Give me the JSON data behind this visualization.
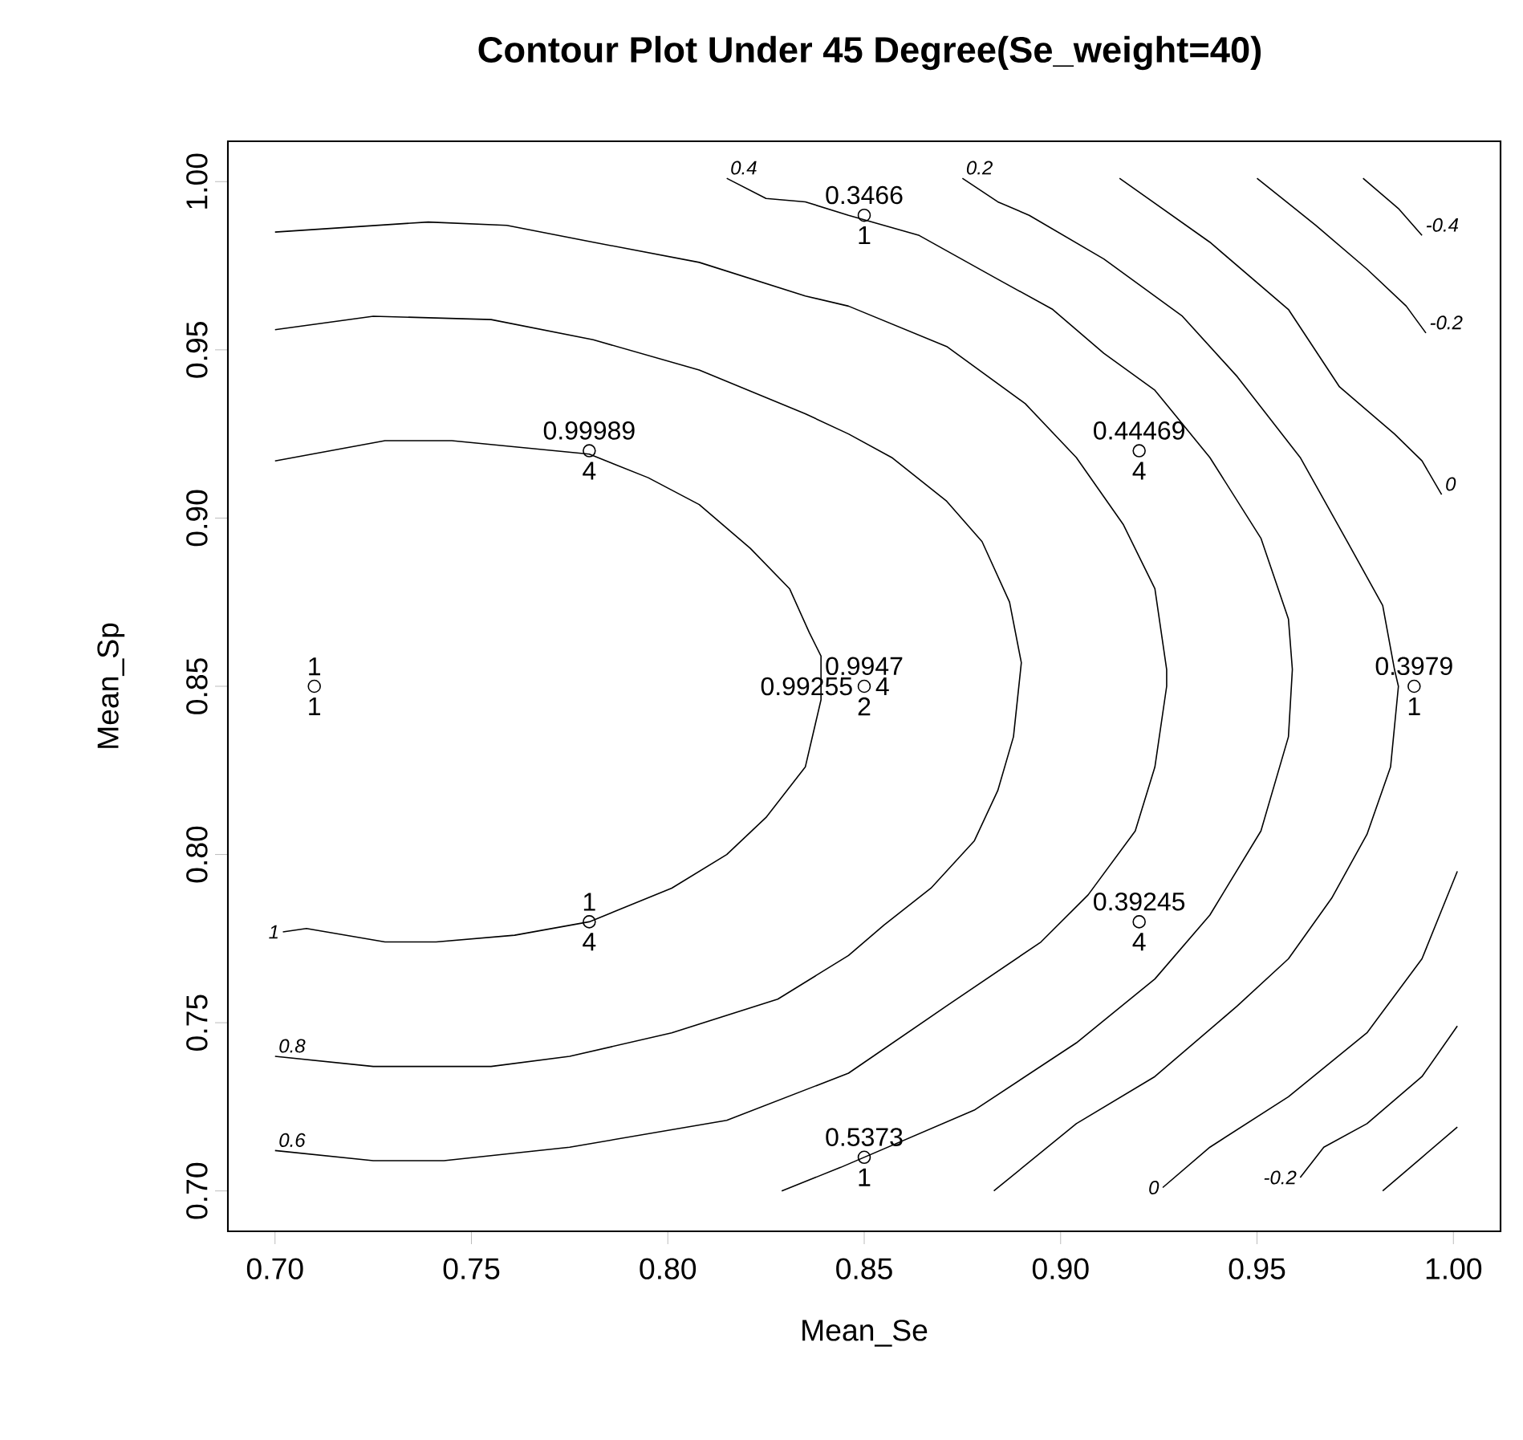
{
  "chart_data": {
    "type": "scatter",
    "title": "Contour Plot Under 45 Degree(Se_weight=40)",
    "xlabel": "Mean_Se",
    "ylabel": "Mean_Sp",
    "xlim": [
      0.688,
      1.012
    ],
    "ylim": [
      0.688,
      1.012
    ],
    "xticks": [
      {
        "value": 0.7,
        "label": "0.70"
      },
      {
        "value": 0.75,
        "label": "0.75"
      },
      {
        "value": 0.8,
        "label": "0.80"
      },
      {
        "value": 0.85,
        "label": "0.85"
      },
      {
        "value": 0.9,
        "label": "0.90"
      },
      {
        "value": 0.95,
        "label": "0.95"
      },
      {
        "value": 1.0,
        "label": "1.00"
      }
    ],
    "yticks": [
      {
        "value": 0.7,
        "label": "0.70"
      },
      {
        "value": 0.75,
        "label": "0.75"
      },
      {
        "value": 0.8,
        "label": "0.80"
      },
      {
        "value": 0.85,
        "label": "0.85"
      },
      {
        "value": 0.9,
        "label": "0.90"
      },
      {
        "value": 0.95,
        "label": "0.95"
      },
      {
        "value": 1.0,
        "label": "1.00"
      }
    ],
    "series": [
      {
        "marker": "circle",
        "color": "#000000",
        "x": [
          0.71,
          0.78,
          0.78,
          0.85,
          0.85,
          0.85,
          0.92,
          0.92,
          0.99
        ],
        "values": [
          0.85,
          0.92,
          0.78,
          0.99,
          0.85,
          0.71,
          0.92,
          0.78,
          0.85
        ]
      },
      {
        "type": "line",
        "marker": "none",
        "name": "1",
        "color": "#000000",
        "x": [
          0.702,
          0.708,
          0.728,
          0.741,
          0.761,
          0.78,
          0.801,
          0.815,
          0.825,
          0.835,
          0.839,
          0.839,
          0.836,
          0.831,
          0.821,
          0.808,
          0.795,
          0.78,
          0.745,
          0.728,
          0.7
        ],
        "values": [
          0.777,
          0.778,
          0.774,
          0.774,
          0.776,
          0.78,
          0.79,
          0.8,
          0.811,
          0.826,
          0.846,
          0.859,
          0.866,
          0.879,
          0.891,
          0.904,
          0.912,
          0.919,
          0.923,
          0.923,
          0.917
        ]
      },
      {
        "type": "line",
        "marker": "none",
        "name": "0.8",
        "color": "#000000",
        "x": [
          0.7,
          0.725,
          0.743,
          0.755,
          0.775,
          0.801,
          0.828,
          0.846,
          0.855,
          0.867,
          0.878,
          0.884,
          0.888,
          0.89,
          0.89,
          0.887,
          0.88,
          0.871,
          0.857,
          0.846,
          0.835,
          0.808,
          0.781,
          0.755,
          0.725,
          0.7
        ],
        "values": [
          0.74,
          0.737,
          0.737,
          0.737,
          0.74,
          0.747,
          0.757,
          0.77,
          0.779,
          0.79,
          0.804,
          0.819,
          0.835,
          0.857,
          0.857,
          0.875,
          0.893,
          0.905,
          0.918,
          0.925,
          0.931,
          0.944,
          0.953,
          0.959,
          0.96,
          0.956
        ]
      },
      {
        "type": "line",
        "marker": "none",
        "name": "0.6",
        "color": "#000000",
        "x": [
          0.7,
          0.725,
          0.743,
          0.775,
          0.815,
          0.846,
          0.871,
          0.895,
          0.907,
          0.919,
          0.924,
          0.927,
          0.927,
          0.924,
          0.916,
          0.904,
          0.891,
          0.871,
          0.846,
          0.835,
          0.808,
          0.781,
          0.759,
          0.739,
          0.7
        ],
        "values": [
          0.712,
          0.709,
          0.709,
          0.713,
          0.721,
          0.735,
          0.755,
          0.774,
          0.788,
          0.807,
          0.826,
          0.85,
          0.855,
          0.879,
          0.898,
          0.918,
          0.934,
          0.951,
          0.963,
          0.966,
          0.976,
          0.982,
          0.987,
          0.988,
          0.985
        ]
      },
      {
        "type": "line",
        "marker": "none",
        "name": "0.4",
        "color": "#000000",
        "x": [
          0.815,
          0.825,
          0.835,
          0.846,
          0.864,
          0.884,
          0.898,
          0.911,
          0.924,
          0.938,
          0.951,
          0.958,
          0.959,
          0.958,
          0.951,
          0.938,
          0.924,
          0.904,
          0.878,
          0.844,
          0.829
        ],
        "values": [
          1.001,
          0.995,
          0.994,
          0.99,
          0.984,
          0.971,
          0.962,
          0.949,
          0.938,
          0.918,
          0.894,
          0.87,
          0.855,
          0.835,
          0.807,
          0.782,
          0.763,
          0.744,
          0.724,
          0.707,
          0.7
        ]
      },
      {
        "type": "line",
        "marker": "none",
        "name": "0.2",
        "color": "#000000",
        "x": [
          0.875,
          0.884,
          0.892,
          0.911,
          0.931,
          0.945,
          0.961,
          0.973,
          0.982,
          0.985,
          0.986,
          0.984,
          0.978,
          0.969,
          0.958,
          0.945,
          0.924,
          0.904,
          0.883
        ],
        "values": [
          1.001,
          0.994,
          0.99,
          0.977,
          0.96,
          0.942,
          0.918,
          0.893,
          0.874,
          0.855,
          0.85,
          0.826,
          0.806,
          0.787,
          0.769,
          0.755,
          0.734,
          0.72,
          0.7
        ]
      },
      {
        "type": "line",
        "marker": "none",
        "name": "0",
        "color": "#000000",
        "x": [
          0.997,
          0.992,
          0.985,
          0.971,
          0.958,
          0.938,
          0.915
        ],
        "values": [
          0.907,
          0.917,
          0.925,
          0.939,
          0.962,
          0.982,
          1.001
        ]
      },
      {
        "type": "line",
        "marker": "none",
        "name": "0",
        "color": "#000000",
        "x": [
          0.926,
          0.938,
          0.958,
          0.978,
          0.992,
          1.001
        ],
        "values": [
          0.701,
          0.713,
          0.728,
          0.747,
          0.769,
          0.795
        ]
      },
      {
        "type": "line",
        "marker": "none",
        "name": "-0.2",
        "color": "#000000",
        "x": [
          0.993,
          0.988,
          0.978,
          0.965,
          0.95
        ],
        "values": [
          0.955,
          0.963,
          0.974,
          0.987,
          1.001
        ]
      },
      {
        "type": "line",
        "marker": "none",
        "name": "-0.2",
        "color": "#000000",
        "x": [
          0.961,
          0.967,
          0.978,
          0.992,
          1.001
        ],
        "values": [
          0.704,
          0.713,
          0.72,
          0.734,
          0.749
        ]
      },
      {
        "type": "line",
        "marker": "none",
        "name": "-0.4",
        "color": "#000000",
        "x": [
          0.992,
          0.986,
          0.977
        ],
        "values": [
          0.984,
          0.992,
          1.001
        ]
      },
      {
        "type": "line",
        "marker": "none",
        "color": "#000000",
        "x": [
          0.982,
          0.992,
          1.001
        ],
        "values": [
          0.7,
          0.71,
          0.719
        ]
      }
    ],
    "annotations": [
      {
        "text": "1",
        "x": 0.71,
        "y": 0.85
      },
      {
        "text": "1",
        "x": 0.71,
        "y": 0.85
      },
      {
        "text": "0.99989",
        "x": 0.78,
        "y": 0.92
      },
      {
        "text": "4",
        "x": 0.78,
        "y": 0.92
      },
      {
        "text": "1",
        "x": 0.78,
        "y": 0.78
      },
      {
        "text": "4",
        "x": 0.78,
        "y": 0.78
      },
      {
        "text": "0.3466",
        "x": 0.85,
        "y": 0.99
      },
      {
        "text": "1",
        "x": 0.85,
        "y": 0.99
      },
      {
        "text": "0.9947",
        "x": 0.85,
        "y": 0.85
      },
      {
        "text": "2",
        "x": 0.85,
        "y": 0.85
      },
      {
        "text": "0.99255",
        "x": 0.85,
        "y": 0.85
      },
      {
        "text": "4",
        "x": 0.85,
        "y": 0.85
      },
      {
        "text": "0.5373",
        "x": 0.85,
        "y": 0.71
      },
      {
        "text": "1",
        "x": 0.85,
        "y": 0.71
      },
      {
        "text": "0.44469",
        "x": 0.92,
        "y": 0.92
      },
      {
        "text": "4",
        "x": 0.92,
        "y": 0.92
      },
      {
        "text": "0.39245",
        "x": 0.92,
        "y": 0.78
      },
      {
        "text": "4",
        "x": 0.92,
        "y": 0.78
      },
      {
        "text": "0.3979",
        "x": 0.99,
        "y": 0.85
      },
      {
        "text": "1",
        "x": 0.99,
        "y": 0.85
      }
    ]
  }
}
